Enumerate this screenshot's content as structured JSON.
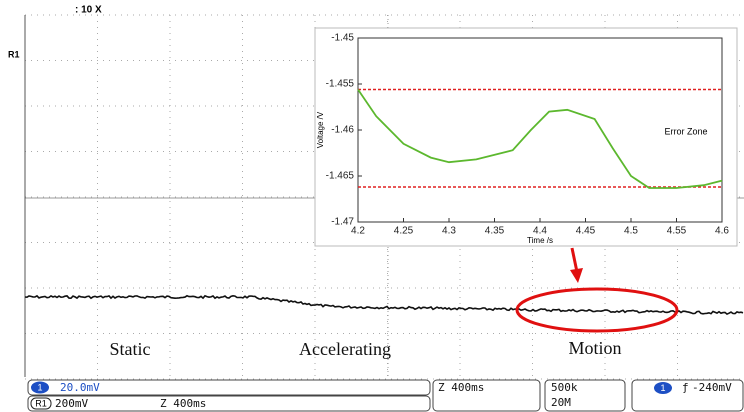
{
  "scope_header": ": 10 X",
  "channel_marker": "R1",
  "regions": [
    "Static",
    "Accelerating",
    "Motion"
  ],
  "status_bar": {
    "ch1_badge": "1",
    "ch1_scale": "20.0mV",
    "ref_badge": "R1",
    "ref_scale": "200mV",
    "ref_time": "Z 400ms",
    "timebase": "Z 400ms",
    "sample_rate": "500k",
    "record_length": "20M",
    "trigger_badge": "1",
    "trigger_symbol": "ƒ",
    "trigger_level": "-240mV"
  },
  "chart_data": {
    "type": "line",
    "x_label": "Time /s",
    "y_label": "Voltage /V",
    "x": [
      4.2,
      4.22,
      4.25,
      4.28,
      4.3,
      4.33,
      4.37,
      4.39,
      4.41,
      4.43,
      4.46,
      4.48,
      4.5,
      4.52,
      4.55,
      4.58,
      4.6
    ],
    "series": [
      {
        "color": "#5cb82e",
        "values": [
          -1.4556,
          -1.4585,
          -1.4615,
          -1.463,
          -1.4635,
          -1.4632,
          -1.4622,
          -1.46,
          -1.458,
          -1.4578,
          -1.4588,
          -1.462,
          -1.465,
          -1.4663,
          -1.4663,
          -1.466,
          -1.4655
        ]
      }
    ],
    "reference_lines": [
      {
        "value": -1.4556,
        "color": "#e02020"
      },
      {
        "value": -1.4662,
        "color": "#e02020"
      }
    ],
    "annotation": "Error Zone",
    "xlim": [
      4.2,
      4.6
    ],
    "xticks": [
      4.2,
      4.25,
      4.3,
      4.35,
      4.4,
      4.45,
      4.5,
      4.55,
      4.6
    ],
    "ylim": [
      -1.47,
      -1.45
    ],
    "yticks": [
      -1.45,
      -1.455,
      -1.46,
      -1.465,
      -1.47
    ]
  }
}
